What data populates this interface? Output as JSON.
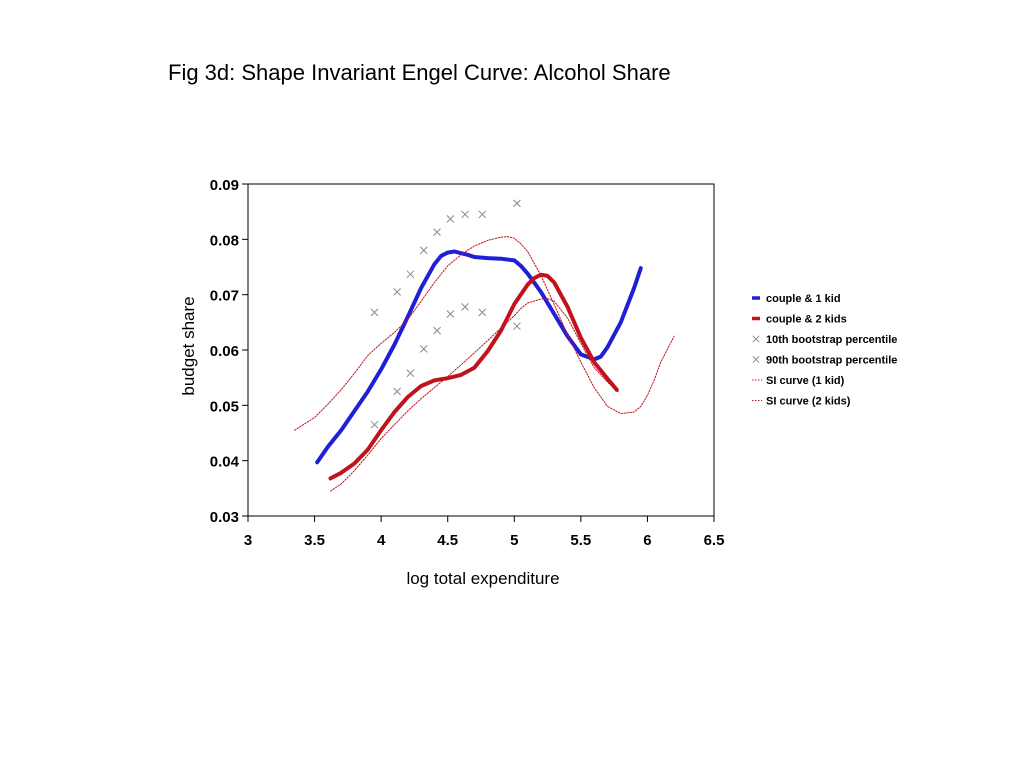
{
  "figure_title": "Fig 3d: Shape Invariant Engel Curve: Alcohol Share",
  "chart_data": {
    "type": "line",
    "title": "Fig 3d: Shape Invariant Engel Curve: Alcohol Share",
    "xlabel": "log total expenditure",
    "ylabel": "budget share",
    "xlim": [
      3,
      6.5
    ],
    "ylim": [
      0.03,
      0.09
    ],
    "x_ticks": [
      "3",
      "3.5",
      "4",
      "4.5",
      "5",
      "5.5",
      "6",
      "6.5"
    ],
    "y_ticks": [
      "0.03",
      "0.04",
      "0.05",
      "0.06",
      "0.07",
      "0.08",
      "0.09"
    ],
    "grid": false,
    "legend_position": "right",
    "series": [
      {
        "name": "couple & 1 kid",
        "style": "thick-line",
        "color": "#1f1fd6",
        "x": [
          3.52,
          3.6,
          3.7,
          3.8,
          3.9,
          4.0,
          4.1,
          4.2,
          4.3,
          4.4,
          4.45,
          4.5,
          4.55,
          4.6,
          4.65,
          4.7,
          4.8,
          4.9,
          5.0,
          5.05,
          5.1,
          5.2,
          5.3,
          5.4,
          5.5,
          5.6,
          5.65,
          5.7,
          5.8,
          5.9,
          5.95
        ],
        "y": [
          0.0397,
          0.0425,
          0.0455,
          0.049,
          0.0525,
          0.0565,
          0.061,
          0.066,
          0.0712,
          0.0755,
          0.077,
          0.0776,
          0.0778,
          0.0775,
          0.0772,
          0.0768,
          0.0766,
          0.0765,
          0.0762,
          0.0752,
          0.0738,
          0.0705,
          0.0665,
          0.0625,
          0.0592,
          0.0583,
          0.0588,
          0.0605,
          0.065,
          0.0712,
          0.0748
        ]
      },
      {
        "name": "couple & 2 kids",
        "style": "thick-line",
        "color": "#c0141c",
        "x": [
          3.62,
          3.7,
          3.8,
          3.9,
          4.0,
          4.1,
          4.2,
          4.3,
          4.4,
          4.5,
          4.6,
          4.7,
          4.8,
          4.9,
          5.0,
          5.1,
          5.15,
          5.2,
          5.25,
          5.3,
          5.4,
          5.5,
          5.6,
          5.7,
          5.77
        ],
        "y": [
          0.0368,
          0.0378,
          0.0395,
          0.042,
          0.0455,
          0.0488,
          0.0515,
          0.0535,
          0.0545,
          0.0549,
          0.0555,
          0.0568,
          0.0598,
          0.0635,
          0.0683,
          0.0718,
          0.073,
          0.0736,
          0.0734,
          0.0722,
          0.0678,
          0.0622,
          0.0578,
          0.0548,
          0.0528
        ]
      },
      {
        "name": "10th bootstrap percentile",
        "style": "x-marker",
        "color": "#8a8a8a",
        "x": [
          3.95,
          4.12,
          4.22,
          4.32,
          4.42,
          4.52,
          4.63,
          4.76,
          5.02
        ],
        "y": [
          0.0465,
          0.0525,
          0.0558,
          0.0602,
          0.0635,
          0.0665,
          0.0678,
          0.0668,
          0.0643
        ]
      },
      {
        "name": "90th bootstrap percentile",
        "style": "x-marker",
        "color": "#8a8a8a",
        "x": [
          3.95,
          4.12,
          4.22,
          4.32,
          4.42,
          4.52,
          4.63,
          4.76,
          5.02
        ],
        "y": [
          0.0668,
          0.0705,
          0.0737,
          0.078,
          0.0813,
          0.0837,
          0.0845,
          0.0845,
          0.0865
        ]
      },
      {
        "name": "SI curve (1 kid)",
        "style": "dotted-line",
        "color": "#c0141c",
        "x": [
          3.35,
          3.5,
          3.6,
          3.7,
          3.8,
          3.9,
          4.0,
          4.1,
          4.2,
          4.3,
          4.4,
          4.5,
          4.6,
          4.7,
          4.8,
          4.9,
          4.95,
          5.0,
          5.05,
          5.1,
          5.2,
          5.3,
          5.4,
          5.5,
          5.6,
          5.7,
          5.8,
          5.9,
          5.95,
          6.0,
          6.05,
          6.1,
          6.2
        ],
        "y": [
          0.0455,
          0.0478,
          0.0502,
          0.0528,
          0.0558,
          0.059,
          0.0612,
          0.0632,
          0.0655,
          0.0688,
          0.0722,
          0.0752,
          0.0772,
          0.0788,
          0.0798,
          0.0804,
          0.0805,
          0.0802,
          0.0792,
          0.0778,
          0.0735,
          0.0682,
          0.0628,
          0.0578,
          0.0532,
          0.0498,
          0.0485,
          0.0488,
          0.0498,
          0.0518,
          0.0545,
          0.0578,
          0.0625
        ]
      },
      {
        "name": "SI curve (2 kids)",
        "style": "dotted-line",
        "color": "#c0141c",
        "x": [
          3.62,
          3.7,
          3.8,
          3.9,
          4.0,
          4.1,
          4.2,
          4.3,
          4.4,
          4.5,
          4.6,
          4.7,
          4.8,
          4.9,
          5.0,
          5.05,
          5.1,
          5.2,
          5.25,
          5.3,
          5.4,
          5.5,
          5.6,
          5.7,
          5.78
        ],
        "y": [
          0.0345,
          0.0358,
          0.0382,
          0.041,
          0.044,
          0.0465,
          0.049,
          0.0512,
          0.0532,
          0.0552,
          0.0573,
          0.0595,
          0.0617,
          0.064,
          0.0662,
          0.0675,
          0.0685,
          0.0692,
          0.0693,
          0.0688,
          0.0658,
          0.0612,
          0.0568,
          0.0542,
          0.0525
        ]
      }
    ]
  }
}
